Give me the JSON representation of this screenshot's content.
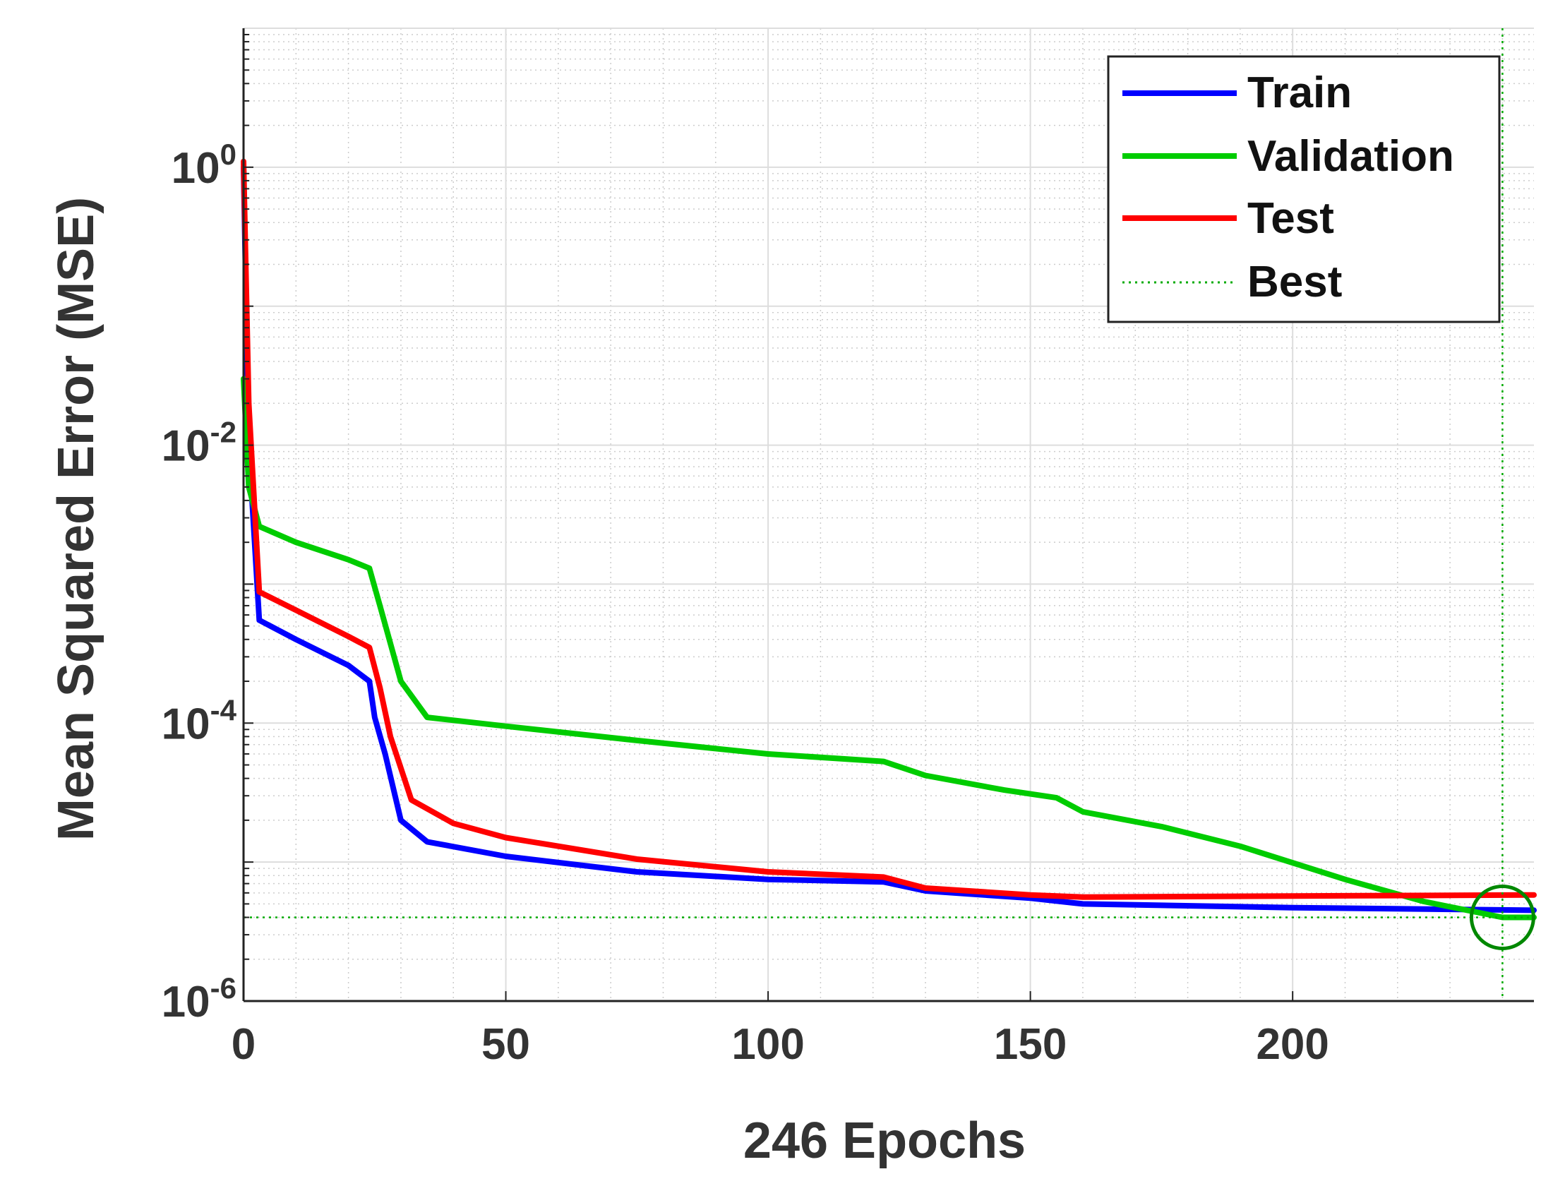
{
  "chart_data": {
    "type": "line",
    "title": "",
    "xlabel": "246 Epochs",
    "ylabel": "Mean Squared Error  (MSE)",
    "y_scale": "log",
    "xlim": [
      0,
      246
    ],
    "ylim": [
      1e-06,
      10
    ],
    "x_ticks": [
      {
        "value": 0,
        "label": "0"
      },
      {
        "value": 50,
        "label": "50"
      },
      {
        "value": 100,
        "label": "100"
      },
      {
        "value": 150,
        "label": "150"
      },
      {
        "value": 200,
        "label": "200"
      }
    ],
    "y_ticks": [
      {
        "value": 1,
        "base": "10",
        "exp": "0"
      },
      {
        "value": 0.01,
        "base": "10",
        "exp": "-2"
      },
      {
        "value": 0.0001,
        "base": "10",
        "exp": "-4"
      },
      {
        "value": 1e-06,
        "base": "10",
        "exp": "-6"
      }
    ],
    "grid": true,
    "legend_position": "top-right",
    "series": [
      {
        "name": "Train",
        "color": "#0000ff",
        "points": [
          [
            0,
            1.0
          ],
          [
            1,
            0.01
          ],
          [
            3,
            0.00055
          ],
          [
            10,
            0.0004
          ],
          [
            20,
            0.00026
          ],
          [
            24,
            0.0002
          ],
          [
            25,
            0.00011
          ],
          [
            27,
            6e-05
          ],
          [
            30,
            2e-05
          ],
          [
            35,
            1.4e-05
          ],
          [
            50,
            1.1e-05
          ],
          [
            75,
            8.5e-06
          ],
          [
            100,
            7.5e-06
          ],
          [
            122,
            7.2e-06
          ],
          [
            130,
            6.2e-06
          ],
          [
            150,
            5.5e-06
          ],
          [
            160,
            5e-06
          ],
          [
            200,
            4.7e-06
          ],
          [
            246,
            4.5e-06
          ]
        ]
      },
      {
        "name": "Validation",
        "color": "#00cc00",
        "points": [
          [
            0,
            0.03
          ],
          [
            1,
            0.005
          ],
          [
            3,
            0.0026
          ],
          [
            10,
            0.002
          ],
          [
            20,
            0.0015
          ],
          [
            24,
            0.0013
          ],
          [
            26,
            0.0007
          ],
          [
            30,
            0.0002
          ],
          [
            35,
            0.00011
          ],
          [
            50,
            9.5e-05
          ],
          [
            75,
            7.5e-05
          ],
          [
            100,
            6e-05
          ],
          [
            122,
            5.3e-05
          ],
          [
            130,
            4.2e-05
          ],
          [
            145,
            3.3e-05
          ],
          [
            155,
            2.9e-05
          ],
          [
            160,
            2.3e-05
          ],
          [
            175,
            1.8e-05
          ],
          [
            190,
            1.3e-05
          ],
          [
            210,
            7.5e-06
          ],
          [
            225,
            5.2e-06
          ],
          [
            240,
            4e-06
          ],
          [
            246,
            4e-06
          ]
        ]
      },
      {
        "name": "Test",
        "color": "#ff0000",
        "points": [
          [
            0,
            1.1
          ],
          [
            1,
            0.02
          ],
          [
            3,
            0.00088
          ],
          [
            10,
            0.00065
          ],
          [
            20,
            0.00042
          ],
          [
            24,
            0.00035
          ],
          [
            26,
            0.00018
          ],
          [
            28,
            8e-05
          ],
          [
            32,
            2.8e-05
          ],
          [
            40,
            1.9e-05
          ],
          [
            50,
            1.5e-05
          ],
          [
            75,
            1.05e-05
          ],
          [
            100,
            8.5e-06
          ],
          [
            122,
            7.8e-06
          ],
          [
            130,
            6.5e-06
          ],
          [
            150,
            5.8e-06
          ],
          [
            160,
            5.6e-06
          ],
          [
            200,
            5.7e-06
          ],
          [
            246,
            5.8e-06
          ]
        ]
      }
    ],
    "best": {
      "name": "Best",
      "epoch": 240,
      "value": 4e-06,
      "color": "#00aa00",
      "marker": "circle"
    },
    "legend": [
      "Train",
      "Validation",
      "Test",
      "Best"
    ]
  }
}
